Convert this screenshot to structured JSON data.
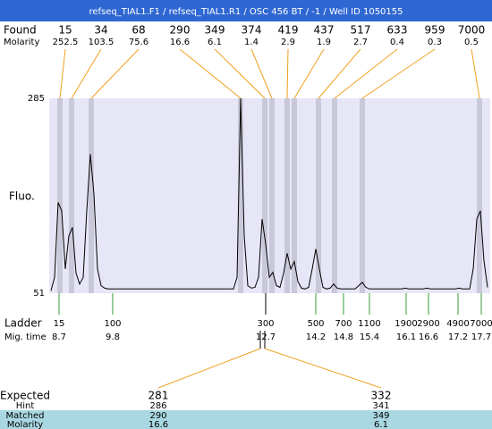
{
  "chart_data": {
    "type": "line",
    "title": "refseq_TIAL1.F1 / refseq_TIAL1.R1 / OSC 456 BT / -1 / Well ID 1050155",
    "y_label": "Fluo.",
    "ylim": [
      51,
      285
    ],
    "yticks": [
      51,
      285
    ],
    "color": "#000000",
    "background": "#e6e6f6",
    "band_color": "#c8c8d8",
    "values": [
      54,
      70,
      160,
      150,
      80,
      120,
      130,
      75,
      62,
      70,
      150,
      218,
      170,
      80,
      60,
      57,
      56,
      56,
      56,
      56,
      56,
      56,
      56,
      56,
      56,
      56,
      56,
      56,
      56,
      56,
      56,
      56,
      56,
      56,
      56,
      56,
      56,
      56,
      56,
      56,
      56,
      56,
      56,
      56,
      56,
      56,
      56,
      56,
      56,
      56,
      56,
      56,
      70,
      285,
      120,
      60,
      57,
      58,
      70,
      140,
      110,
      70,
      76,
      60,
      58,
      75,
      99,
      80,
      89,
      65,
      57,
      56,
      58,
      80,
      104,
      80,
      58,
      56,
      57,
      62,
      57,
      56,
      56,
      56,
      56,
      56,
      60,
      64,
      58,
      56,
      56,
      56,
      56,
      56,
      56,
      56,
      56,
      56,
      56,
      57,
      56,
      56,
      56,
      56,
      56,
      57,
      56,
      56,
      56,
      56,
      56,
      56,
      56,
      56,
      57,
      56,
      56,
      56,
      80,
      140,
      150,
      90,
      58
    ],
    "found": {
      "label": "Found",
      "sizes": [
        15,
        34,
        68,
        290,
        349,
        374,
        419,
        437,
        517,
        633,
        959,
        7000
      ],
      "molarity_label": "Molarity",
      "molarity": [
        252.5,
        103.5,
        75.6,
        16.6,
        6.1,
        1.4,
        2.9,
        1.9,
        2.7,
        0.4,
        0.3,
        0.5
      ]
    },
    "ladder": {
      "label": "Ladder",
      "sizes": [
        15,
        100,
        300,
        500,
        700,
        1100,
        1900,
        2900,
        4900,
        7000
      ],
      "mig_time_label": "Mig. time",
      "mig_times": [
        8.7,
        9.8,
        12.7,
        14.2,
        14.8,
        15.4,
        16.1,
        16.6,
        17.2,
        17.7
      ]
    },
    "expected": {
      "label": "Expected",
      "values": [
        281,
        332
      ],
      "hint_label": "Hint",
      "hint": [
        286,
        341
      ],
      "matched_label": "Matched",
      "matched": [
        290,
        349
      ],
      "molarity_label": "Molarity",
      "molarity": [
        16.6,
        6.1
      ]
    }
  }
}
